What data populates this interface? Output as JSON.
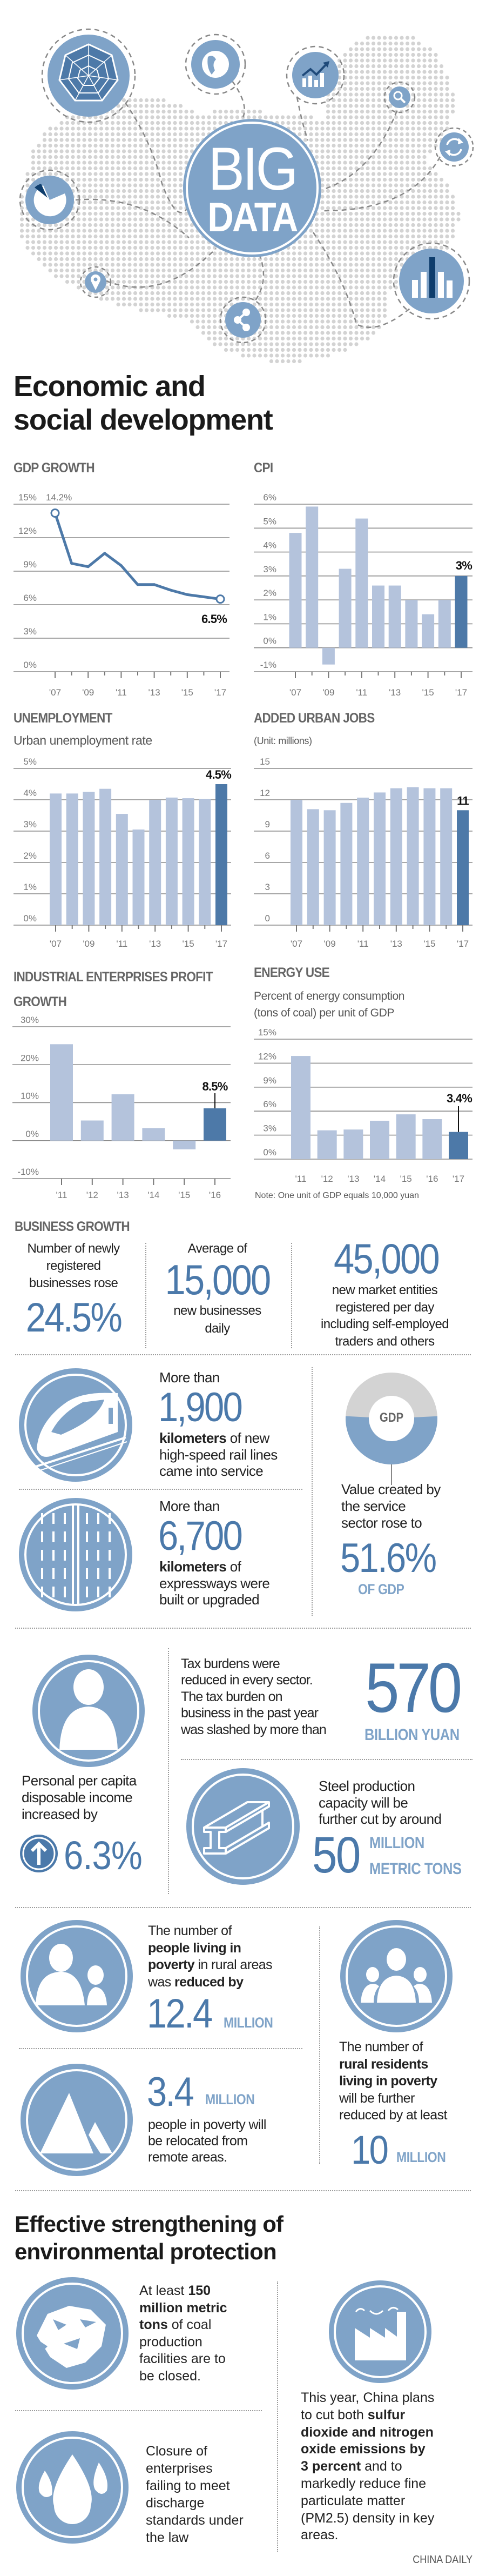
{
  "colors": {
    "accent_blue": "#4b79aa",
    "circle_blue": "#7fa3c8",
    "bar_light": "#b4c3dc",
    "bar_dark": "#4d79a8",
    "map_dot": "#d3d3d3",
    "donut_gray": "#d3d3d3"
  },
  "banner": {
    "title_line1": "BIG",
    "title_line2": "DATA",
    "icons": [
      "radar-chart-icon",
      "globe-icon",
      "trend-chart-icon",
      "search-icon",
      "refresh-icon",
      "pie-chart-icon",
      "location-pin-icon",
      "share-icon",
      "bar-chart-icon"
    ]
  },
  "section1": {
    "title_line1": "Economic and",
    "title_line2": "social development"
  },
  "chart_data": [
    {
      "type": "line",
      "title": "GDP GROWTH",
      "subtitle": "",
      "x": [
        2007,
        2008,
        2009,
        2010,
        2011,
        2012,
        2013,
        2014,
        2015,
        2016,
        2017
      ],
      "categories": [
        "'07",
        "'08",
        "'09",
        "'10",
        "'11",
        "'12",
        "'13",
        "'14",
        "'15",
        "'16",
        "'17"
      ],
      "x_tick_labels": [
        "'07",
        "'09",
        "'11",
        "'13",
        "'15",
        "'17"
      ],
      "values": [
        14.2,
        9.7,
        9.4,
        10.6,
        9.5,
        7.8,
        7.8,
        7.3,
        6.9,
        6.7,
        6.5
      ],
      "y_ticks": [
        0,
        3,
        6,
        9,
        12,
        15
      ],
      "y_tick_labels": [
        "0%",
        "3%",
        "6%",
        "9%",
        "12%",
        "15%"
      ],
      "ylim": [
        0,
        15
      ],
      "unit": "%",
      "grid": true,
      "start_label": "14.2%",
      "value_label": "6.5%"
    },
    {
      "type": "bar",
      "title": "CPI",
      "subtitle": "",
      "x": [
        2007,
        2008,
        2009,
        2010,
        2011,
        2012,
        2013,
        2014,
        2015,
        2016,
        2017
      ],
      "categories": [
        "'07",
        "'08",
        "'09",
        "'10",
        "'11",
        "'12",
        "'13",
        "'14",
        "'15",
        "'16",
        "'17"
      ],
      "x_tick_labels": [
        "'07",
        "'09",
        "'11",
        "'13",
        "'15",
        "'17"
      ],
      "values": [
        4.8,
        5.9,
        -0.7,
        3.3,
        5.4,
        2.6,
        2.6,
        2.0,
        1.4,
        2.0,
        3.0
      ],
      "y_ticks": [
        -1,
        0,
        1,
        2,
        3,
        4,
        5,
        6
      ],
      "y_tick_labels": [
        "-1%",
        "0%",
        "1%",
        "2%",
        "3%",
        "4%",
        "5%",
        "6%"
      ],
      "ylim": [
        -1,
        6
      ],
      "unit": "%",
      "grid": true,
      "value_label": "3%"
    },
    {
      "type": "bar",
      "title": "UNEMPLOYMENT",
      "subtitle": "Urban unemployment rate",
      "x": [
        2007,
        2008,
        2009,
        2010,
        2011,
        2012,
        2013,
        2014,
        2015,
        2016,
        2017
      ],
      "categories": [
        "'07",
        "'08",
        "'09",
        "'10",
        "'11",
        "'12",
        "'13",
        "'14",
        "'15",
        "'16",
        "'17"
      ],
      "x_tick_labels": [
        "'07",
        "'09",
        "'11",
        "'13",
        "'15",
        "'17"
      ],
      "values": [
        4.2,
        4.2,
        4.25,
        4.35,
        3.55,
        3.05,
        4.0,
        4.07,
        4.05,
        4.02,
        4.5
      ],
      "y_ticks": [
        0,
        1,
        2,
        3,
        4,
        5
      ],
      "y_tick_labels": [
        "0%",
        "1%",
        "2%",
        "3%",
        "4%",
        "5%"
      ],
      "ylim": [
        0,
        5
      ],
      "unit": "%",
      "grid": true,
      "value_label": "4.5%"
    },
    {
      "type": "bar",
      "title": "ADDED URBAN JOBS",
      "subtitle": "(Unit: millions)",
      "x": [
        2007,
        2008,
        2009,
        2010,
        2011,
        2012,
        2013,
        2014,
        2015,
        2016,
        2017
      ],
      "categories": [
        "'07",
        "'08",
        "'09",
        "'10",
        "'11",
        "'12",
        "'13",
        "'14",
        "'15",
        "'16",
        "'17"
      ],
      "x_tick_labels": [
        "'07",
        "'09",
        "'11",
        "'13",
        "'15",
        "'17"
      ],
      "values": [
        12.0,
        11.1,
        11.0,
        11.7,
        12.2,
        12.7,
        13.1,
        13.2,
        13.1,
        13.1,
        11
      ],
      "y_ticks": [
        0,
        3,
        6,
        9,
        12,
        15
      ],
      "y_tick_labels": [
        "0",
        "3",
        "6",
        "9",
        "12",
        "15"
      ],
      "ylim": [
        0,
        15
      ],
      "unit": "millions",
      "grid": true,
      "value_label": "11"
    },
    {
      "type": "bar",
      "title": "INDUSTRIAL ENTERPRISES PROFIT GROWTH",
      "subtitle": "",
      "x": [
        2011,
        2012,
        2013,
        2014,
        2015,
        2016
      ],
      "categories": [
        "'11",
        "'12",
        "'13",
        "'14",
        "'15",
        "'16"
      ],
      "x_tick_labels": [
        "'11",
        "'12",
        "'13",
        "'14",
        "'15",
        "'16"
      ],
      "values": [
        25.4,
        5.3,
        12.2,
        3.3,
        -2.3,
        8.5
      ],
      "y_ticks": [
        -10,
        0,
        10,
        20,
        30
      ],
      "y_tick_labels": [
        "-10%",
        "0%",
        "10%",
        "20%",
        "30%"
      ],
      "ylim": [
        -10,
        30
      ],
      "unit": "%",
      "grid": true,
      "value_label": "8.5%"
    },
    {
      "type": "bar",
      "title": "ENERGY USE",
      "subtitle": "Percent of energy consumption (tons of coal) per unit of GDP",
      "subtitle_lines": [
        "Percent of energy consumption",
        "(tons of coal) per unit of GDP"
      ],
      "x": [
        2011,
        2012,
        2013,
        2014,
        2015,
        2016,
        2017
      ],
      "categories": [
        "'11",
        "'12",
        "'13",
        "'14",
        "'15",
        "'16",
        "'17"
      ],
      "x_tick_labels": [
        "'11",
        "'12",
        "'13",
        "'14",
        "'15",
        "'16",
        "'17"
      ],
      "values": [
        12.9,
        3.6,
        3.7,
        4.8,
        5.6,
        5.0,
        3.4
      ],
      "y_ticks": [
        0,
        3,
        6,
        9,
        12,
        15
      ],
      "y_tick_labels": [
        "0%",
        "3%",
        "6%",
        "9%",
        "12%",
        "15%"
      ],
      "ylim": [
        0,
        15
      ],
      "unit": "%",
      "grid": true,
      "value_label": "3.4%",
      "note": "Note: One unit of GDP equals 10,000 yuan"
    }
  ],
  "business_growth": {
    "title": "BUSINESS GROWTH",
    "col1": {
      "lines": [
        "Number of newly",
        "registered",
        "businesses rose"
      ],
      "value": "24.5%"
    },
    "col2": {
      "lead": "Average of",
      "value": "15,000",
      "lines": [
        "new businesses",
        "daily"
      ]
    },
    "col3": {
      "value": "45,000",
      "lines": [
        "new market entities",
        "registered per day",
        "including self-employed",
        "traders and others"
      ]
    }
  },
  "rail": {
    "lead": "More than",
    "value": "1,900",
    "lines": [
      [
        {
          "t": "kilometers",
          "b": true
        },
        {
          "t": " of new"
        }
      ],
      [
        {
          "t": "high-speed rail lines"
        }
      ],
      [
        {
          "t": "came into service"
        }
      ]
    ]
  },
  "expressway": {
    "lead": "More than",
    "value": "6,700",
    "lines": [
      [
        {
          "t": "kilometers",
          "b": true
        },
        {
          "t": " of"
        }
      ],
      [
        {
          "t": "expressways were"
        }
      ],
      [
        {
          "t": "built or upgraded"
        }
      ]
    ]
  },
  "service": {
    "donut_label": "GDP",
    "lines": [
      "Value created by",
      "the service",
      "sector rose to"
    ],
    "value": "51.6%",
    "unit": "OF GDP",
    "share_percent": 51.6
  },
  "tax": {
    "lines": [
      "Tax burdens were",
      "reduced in every sector.",
      "The tax burden on",
      "business in the past year",
      "was slashed by more than"
    ],
    "value": "570",
    "unit": "BILLION YUAN"
  },
  "income": {
    "lines": [
      "Personal per capita",
      "disposable income",
      "increased by"
    ],
    "value": "6.3%"
  },
  "steel": {
    "lines": [
      "Steel production",
      "capacity will be",
      "further cut by around"
    ],
    "value": "50",
    "unit_line1": "MILLION",
    "unit_line2": "METRIC TONS"
  },
  "poverty_reduced": {
    "lines": [
      [
        {
          "t": "The number of"
        }
      ],
      [
        {
          "t": "people living in",
          "b": true
        }
      ],
      [
        {
          "t": "poverty",
          "b": true
        },
        {
          "t": " in rural areas"
        }
      ],
      [
        {
          "t": "was "
        },
        {
          "t": "reduced by",
          "b": true
        }
      ]
    ],
    "value": "12.4",
    "unit": "MILLION"
  },
  "relocation": {
    "value": "3.4",
    "unit": "MILLION",
    "lines": [
      "people in poverty will",
      "be relocated from",
      "remote areas."
    ]
  },
  "poverty_target": {
    "lines": [
      [
        {
          "t": "The number of"
        }
      ],
      [
        {
          "t": "rural residents",
          "b": true
        }
      ],
      [
        {
          "t": "living in poverty",
          "b": true
        }
      ],
      [
        {
          "t": "will be further"
        }
      ],
      [
        {
          "t": "reduced by at least"
        }
      ]
    ],
    "value": "10",
    "unit": "MILLION"
  },
  "section2": {
    "title_line1": "Effective strengthening of",
    "title_line2": "environmental protection"
  },
  "coal": {
    "lines": [
      [
        {
          "t": "At least "
        },
        {
          "t": "150",
          "b": true
        }
      ],
      [
        {
          "t": "million metric",
          "b": true
        }
      ],
      [
        {
          "t": "tons",
          "b": true
        },
        {
          "t": " of coal"
        }
      ],
      [
        {
          "t": "production"
        }
      ],
      [
        {
          "t": "facilities are to"
        }
      ],
      [
        {
          "t": "be closed."
        }
      ]
    ]
  },
  "discharge": {
    "lines": [
      "Closure of",
      "enterprises",
      "failing to meet",
      "discharge",
      "standards under",
      "the law"
    ]
  },
  "emissions": {
    "lines": [
      [
        {
          "t": "This year, China plans"
        }
      ],
      [
        {
          "t": "to cut both "
        },
        {
          "t": "sulfur",
          "b": true
        }
      ],
      [
        {
          "t": "dioxide and nitrogen",
          "b": true
        }
      ],
      [
        {
          "t": "oxide emissions by",
          "b": true
        }
      ],
      [
        {
          "t": "3 percent",
          "b": true
        },
        {
          "t": " and to"
        }
      ],
      [
        {
          "t": "markedly reduce fine"
        }
      ],
      [
        {
          "t": "particulate matter"
        }
      ],
      [
        {
          "t": "(PM2.5) density in key"
        }
      ],
      [
        {
          "t": "areas."
        }
      ]
    ]
  },
  "credit": "CHINA DAILY"
}
